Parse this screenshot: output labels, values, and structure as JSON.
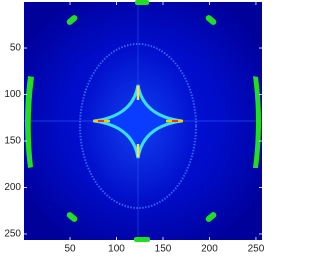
{
  "chart_data": {
    "type": "image",
    "xlim": [
      0.5,
      256.5
    ],
    "ylim": [
      0.5,
      256.5
    ],
    "y_reversed": true,
    "xticks": [
      50,
      100,
      150,
      200,
      250
    ],
    "yticks": [
      50,
      100,
      150,
      200,
      250
    ]
  }
}
